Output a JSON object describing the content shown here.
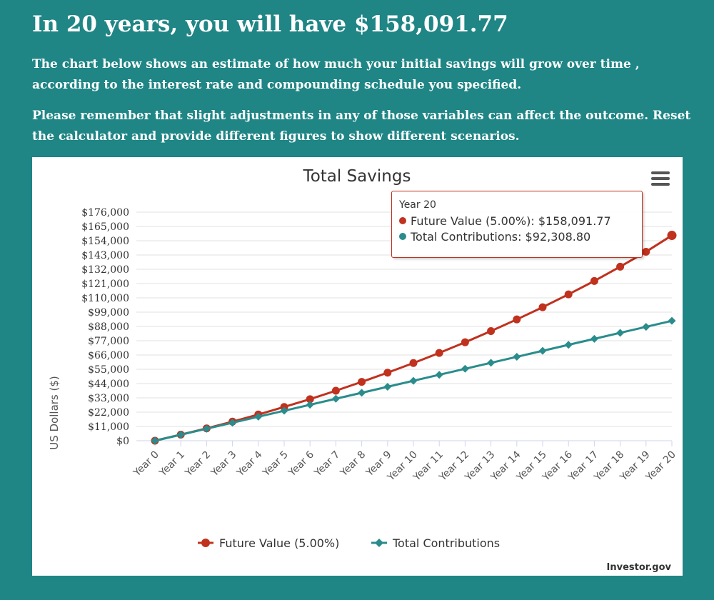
{
  "headline": "In 20 years, you will have $158,091.77",
  "intro": {
    "p1": "The chart below shows an estimate of how much your initial savings will grow over time , according to the interest rate and compounding schedule you specified.",
    "p2": "Please remember that slight adjustments in any of those variables can affect the outcome. Reset the calculator and provide different figures to show different scenarios."
  },
  "colors": {
    "background": "#1f8585",
    "future_value": "#c0311e",
    "contributions": "#2a8c8c"
  },
  "icons": {
    "menu": "hamburger-menu-icon"
  },
  "tooltip": {
    "header": "Year 20",
    "future_label": "Future Value (5.00%)",
    "future_value": "$158,091.77",
    "contrib_label": "Total Contributions",
    "contrib_value": "$92,308.80"
  },
  "credit": "Investor.gov",
  "chart_data": {
    "type": "line",
    "title": "Total Savings",
    "ylabel": "US Dollars ($)",
    "xlabel": "",
    "ylim": [
      0,
      176000
    ],
    "y_ticks": [
      "$0",
      "$11,000",
      "$22,000",
      "$33,000",
      "$44,000",
      "$55,000",
      "$66,000",
      "$77,000",
      "$88,000",
      "$99,000",
      "$110,000",
      "$121,000",
      "$132,000",
      "$143,000",
      "$154,000",
      "$165,000",
      "$176,000"
    ],
    "categories": [
      "Year 0",
      "Year 1",
      "Year 2",
      "Year 3",
      "Year 4",
      "Year 5",
      "Year 6",
      "Year 7",
      "Year 8",
      "Year 9",
      "Year 10",
      "Year 11",
      "Year 12",
      "Year 13",
      "Year 14",
      "Year 15",
      "Year 16",
      "Year 17",
      "Year 18",
      "Year 19",
      "Year 20"
    ],
    "grid": true,
    "legend_position": "bottom-center",
    "series": [
      {
        "name": "Future Value (5.00%)",
        "marker": "circle",
        "values": [
          0,
          4700,
          9500,
          14700,
          20200,
          26000,
          32000,
          38500,
          45300,
          52400,
          59800,
          67600,
          75800,
          84400,
          93400,
          102800,
          112700,
          123000,
          134000,
          145500,
          158091.77
        ]
      },
      {
        "name": "Total Contributions",
        "marker": "diamond",
        "values": [
          0,
          4615,
          9230,
          13845,
          18460,
          23075,
          27690,
          32305,
          36920,
          41535,
          46150,
          50765,
          55380,
          59995,
          64610,
          69225,
          73840,
          78455,
          83070,
          87685,
          92308.8
        ]
      }
    ]
  }
}
